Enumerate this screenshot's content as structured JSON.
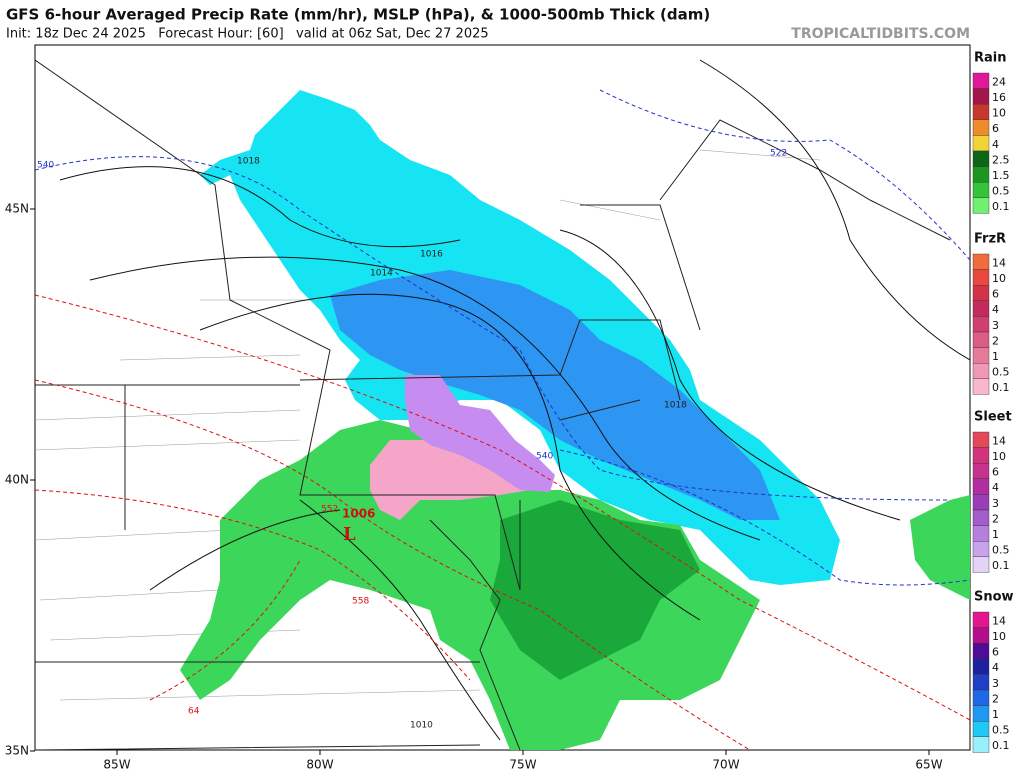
{
  "header": {
    "title": "GFS 6-hour Averaged Precip Rate (mm/hr), MSLP (hPa), & 1000-500mb Thick (dam)",
    "subtitle": "Init: 18z Dec 24 2025   Forecast Hour: [60]   valid at 06z Sat, Dec 27 2025",
    "source": "TROPICALTIDBITS.COM"
  },
  "map": {
    "lat_ticks": [
      {
        "value": 45,
        "label": "45N"
      },
      {
        "value": 40,
        "label": "40N"
      },
      {
        "value": 35,
        "label": "35N"
      }
    ],
    "lon_ticks": [
      {
        "value": -85,
        "label": "85W"
      },
      {
        "value": -80,
        "label": "80W"
      },
      {
        "value": -75,
        "label": "75W"
      },
      {
        "value": -70,
        "label": "70W"
      },
      {
        "value": -65,
        "label": "65W"
      }
    ],
    "isobar_labels": [
      "1018",
      "1016",
      "1014",
      "1018",
      "1010",
      "1006"
    ],
    "thickness_labels": [
      "540",
      "522",
      "540",
      "552",
      "558",
      "64"
    ],
    "low_label": "L"
  },
  "legends": [
    {
      "title": "Rain",
      "labels": [
        "24",
        "16",
        "10",
        "6",
        "4",
        "2.5",
        "1.5",
        "0.5",
        "0.1"
      ],
      "colors": [
        "#e2189a",
        "#a3164c",
        "#c8372c",
        "#ef8b2b",
        "#f2d438",
        "#0b6617",
        "#1d961f",
        "#34c437",
        "#6ff070"
      ]
    },
    {
      "title": "FrzR",
      "labels": [
        "14",
        "10",
        "6",
        "4",
        "3",
        "2",
        "1",
        "0.5",
        "0.1"
      ],
      "colors": [
        "#f26b3c",
        "#e8483e",
        "#d23348",
        "#c42a5d",
        "#d13f70",
        "#dc5c85",
        "#e77a99",
        "#f197b7",
        "#f9b6cd"
      ]
    },
    {
      "title": "Sleet",
      "labels": [
        "14",
        "10",
        "6",
        "4",
        "3",
        "2",
        "1",
        "0.5",
        "0.1"
      ],
      "colors": [
        "#e5475b",
        "#d3337b",
        "#c6328e",
        "#b22ca2",
        "#9b3db5",
        "#a45ccb",
        "#b57fdd",
        "#c9a2ec",
        "#e5d3f6"
      ]
    },
    {
      "title": "Snow",
      "labels": [
        "14",
        "10",
        "6",
        "4",
        "3",
        "2",
        "1",
        "0.5",
        "0.1"
      ],
      "colors": [
        "#e6158e",
        "#b30c8c",
        "#510b97",
        "#1f209e",
        "#1f3fc9",
        "#2067e6",
        "#1f98f1",
        "#20c9f5",
        "#98f0fb"
      ]
    }
  ]
}
